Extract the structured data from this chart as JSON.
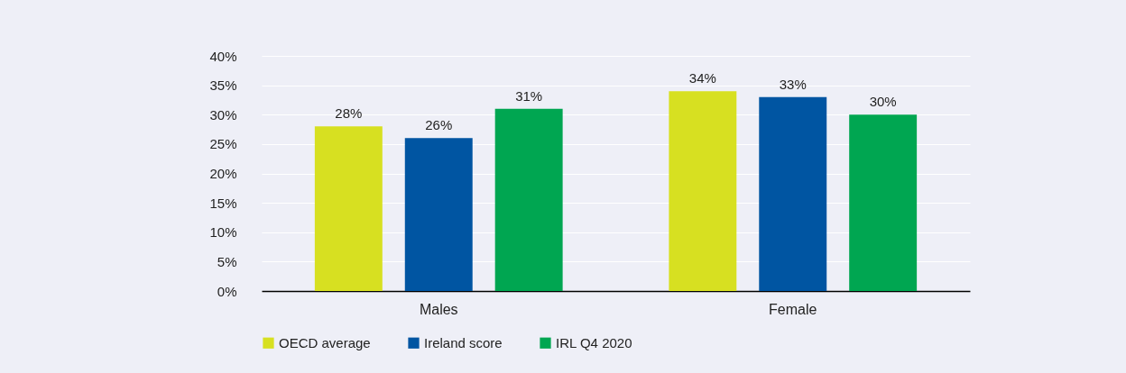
{
  "chart_data": {
    "type": "bar",
    "categories": [
      "Males",
      "Female"
    ],
    "series": [
      {
        "name": "OECD average",
        "color": "#d7e021",
        "values": [
          28,
          34
        ],
        "value_labels": [
          "28%",
          "34%"
        ]
      },
      {
        "name": "Ireland score",
        "color": "#0055a2",
        "values": [
          26,
          33
        ],
        "value_labels": [
          "26%",
          "33%"
        ]
      },
      {
        "name": "IRL Q4 2020",
        "color": "#00a651",
        "values": [
          31,
          30
        ],
        "value_labels": [
          "31%",
          "30%"
        ]
      }
    ],
    "ylim": [
      0,
      40
    ],
    "yticks": [
      {
        "value": 0,
        "label": "0%"
      },
      {
        "value": 5,
        "label": "5%"
      },
      {
        "value": 10,
        "label": "10%"
      },
      {
        "value": 15,
        "label": "15%"
      },
      {
        "value": 20,
        "label": "20%"
      },
      {
        "value": 25,
        "label": "25%"
      },
      {
        "value": 30,
        "label": "30%"
      },
      {
        "value": 35,
        "label": "35%"
      },
      {
        "value": 40,
        "label": "40%"
      }
    ],
    "grid": "y",
    "legend": "bottom"
  }
}
